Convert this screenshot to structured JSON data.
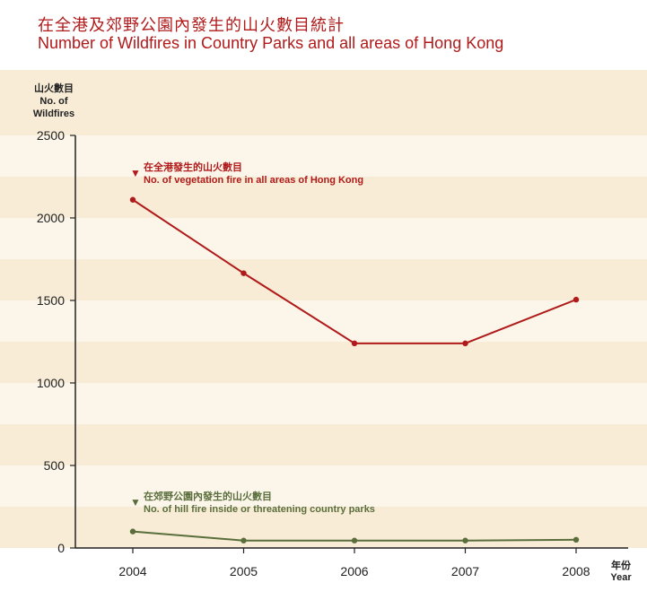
{
  "titles": {
    "zh": "在全港及郊野公園內發生的山火數目統計",
    "en": "Number of Wildfires in Country Parks and all areas of Hong Kong"
  },
  "colors": {
    "band_dark": "#f8ecd6",
    "band_light": "#fcf6ea",
    "series_red": "#b01a1a",
    "series_green": "#5a6e3c",
    "axis": "#222222"
  },
  "chart_data": {
    "type": "line",
    "ylabel_lines": [
      "山火數目",
      "No. of",
      "Wildfires"
    ],
    "xlabel_lines": [
      "年份",
      "Year"
    ],
    "x": [
      "2004",
      "2005",
      "2006",
      "2007",
      "2008"
    ],
    "ylim": [
      0,
      2500
    ],
    "yticks": [
      0,
      500,
      1000,
      1500,
      2000,
      2500
    ],
    "series": [
      {
        "name_zh": "在全港發生的山火數目",
        "name": "No. of vegetation fire in all areas of Hong Kong",
        "values": [
          2110,
          1665,
          1240,
          1240,
          1505
        ],
        "color": "#b01a1a",
        "marker": "▼"
      },
      {
        "name_zh": "在郊野公園內發生的山火數目",
        "name": "No. of hill fire inside or threatening country parks",
        "values": [
          100,
          45,
          45,
          45,
          50
        ],
        "color": "#5a6e3c",
        "marker": "▼"
      }
    ]
  }
}
